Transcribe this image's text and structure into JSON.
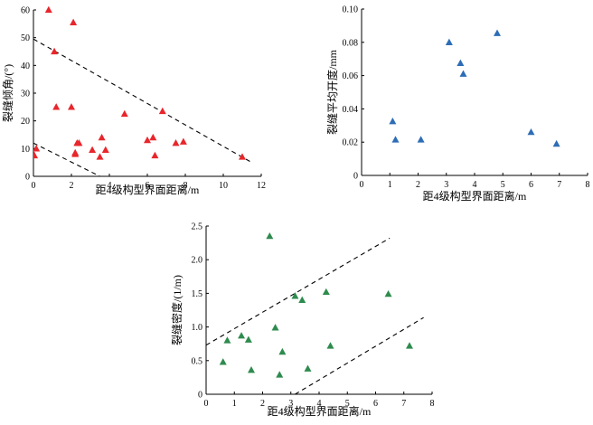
{
  "chart_data": [
    {
      "type": "scatter",
      "title": "",
      "xlabel": "距4级构型界面距离/m",
      "ylabel": "裂缝倾角/(°)",
      "xlim": [
        0,
        12
      ],
      "ylim": [
        0,
        60
      ],
      "xticks": [
        0,
        2,
        4,
        6,
        8,
        10,
        12
      ],
      "yticks": [
        0,
        10,
        20,
        30,
        40,
        50,
        60
      ],
      "x_tick_labels": [
        "0",
        "2",
        "4",
        "6",
        "8",
        "10",
        "12"
      ],
      "y_tick_labels": [
        "0",
        "10",
        "20",
        "30",
        "40",
        "50",
        "60"
      ],
      "marker": "triangle",
      "color": "#e8262b",
      "grid": false,
      "series": [
        {
          "x": [
            0.05,
            0.15,
            0.8,
            1.1,
            1.2,
            2.0,
            2.1,
            2.2,
            2.2,
            2.3,
            2.4,
            3.1,
            3.5,
            3.6,
            3.8,
            4.8,
            6.0,
            6.3,
            6.4,
            6.8,
            7.5,
            7.9,
            11.0
          ],
          "y": [
            7.5,
            10.0,
            60.0,
            45.0,
            25.0,
            25.0,
            55.5,
            8.5,
            8.0,
            12.0,
            12.0,
            9.5,
            7.0,
            14.0,
            9.5,
            22.5,
            13.0,
            14.0,
            7.5,
            23.5,
            12.0,
            12.5,
            7.0
          ]
        }
      ],
      "reference_lines": [
        {
          "style": "dashed",
          "x": [
            0,
            11.5
          ],
          "y": [
            49.5,
            5.0
          ]
        },
        {
          "style": "dashed",
          "x": [
            0,
            3.5
          ],
          "y": [
            12.0,
            0.0
          ]
        }
      ]
    },
    {
      "type": "scatter",
      "title": "",
      "xlabel": "距4级构型界面距离/m",
      "ylabel": "裂缝平均开度/mm",
      "xlim": [
        0,
        8
      ],
      "ylim": [
        0,
        0.1
      ],
      "xticks": [
        0,
        1,
        2,
        3,
        4,
        5,
        6,
        7,
        8
      ],
      "yticks": [
        0,
        0.02,
        0.04,
        0.06,
        0.08,
        0.1
      ],
      "x_tick_labels": [
        "0",
        "1",
        "2",
        "3",
        "4",
        "5",
        "6",
        "7",
        "8"
      ],
      "y_tick_labels": [
        "0",
        "0.02",
        "0.04",
        "0.06",
        "0.08",
        "0.10"
      ],
      "marker": "triangle",
      "color": "#2d6db5",
      "grid": false,
      "series": [
        {
          "x": [
            1.1,
            1.2,
            2.1,
            3.1,
            3.5,
            3.6,
            4.8,
            6.0,
            6.9
          ],
          "y": [
            0.0325,
            0.0215,
            0.0215,
            0.08,
            0.0675,
            0.061,
            0.0855,
            0.026,
            0.019
          ]
        }
      ],
      "reference_lines": []
    },
    {
      "type": "scatter",
      "title": "",
      "xlabel": "距4级构型界面距离/m",
      "ylabel": "裂缝密度/(1/m)",
      "xlim": [
        0,
        8
      ],
      "ylim": [
        0,
        2.5
      ],
      "xticks": [
        0,
        1,
        2,
        3,
        4,
        5,
        6,
        7,
        8
      ],
      "yticks": [
        0,
        0.5,
        1.0,
        1.5,
        2.0,
        2.5
      ],
      "x_tick_labels": [
        "0",
        "1",
        "2",
        "3",
        "4",
        "5",
        "6",
        "7",
        "8"
      ],
      "y_tick_labels": [
        "0",
        "0.5",
        "1.0",
        "1.5",
        "2.0",
        "2.5"
      ],
      "marker": "triangle",
      "color": "#2e8b4e",
      "grid": false,
      "series": [
        {
          "x": [
            0.6,
            0.75,
            1.25,
            1.5,
            1.6,
            2.25,
            2.45,
            2.6,
            2.7,
            3.15,
            3.4,
            3.6,
            4.25,
            4.4,
            6.45,
            7.2
          ],
          "y": [
            0.48,
            0.8,
            0.87,
            0.81,
            0.36,
            2.35,
            0.99,
            0.29,
            0.63,
            1.46,
            1.4,
            0.38,
            1.52,
            0.72,
            1.49,
            0.72
          ]
        }
      ],
      "reference_lines": [
        {
          "style": "dashed",
          "x": [
            0,
            6.5
          ],
          "y": [
            0.73,
            2.32
          ]
        },
        {
          "style": "dashed",
          "x": [
            3.15,
            7.7
          ],
          "y": [
            0.0,
            1.14
          ]
        }
      ]
    }
  ]
}
